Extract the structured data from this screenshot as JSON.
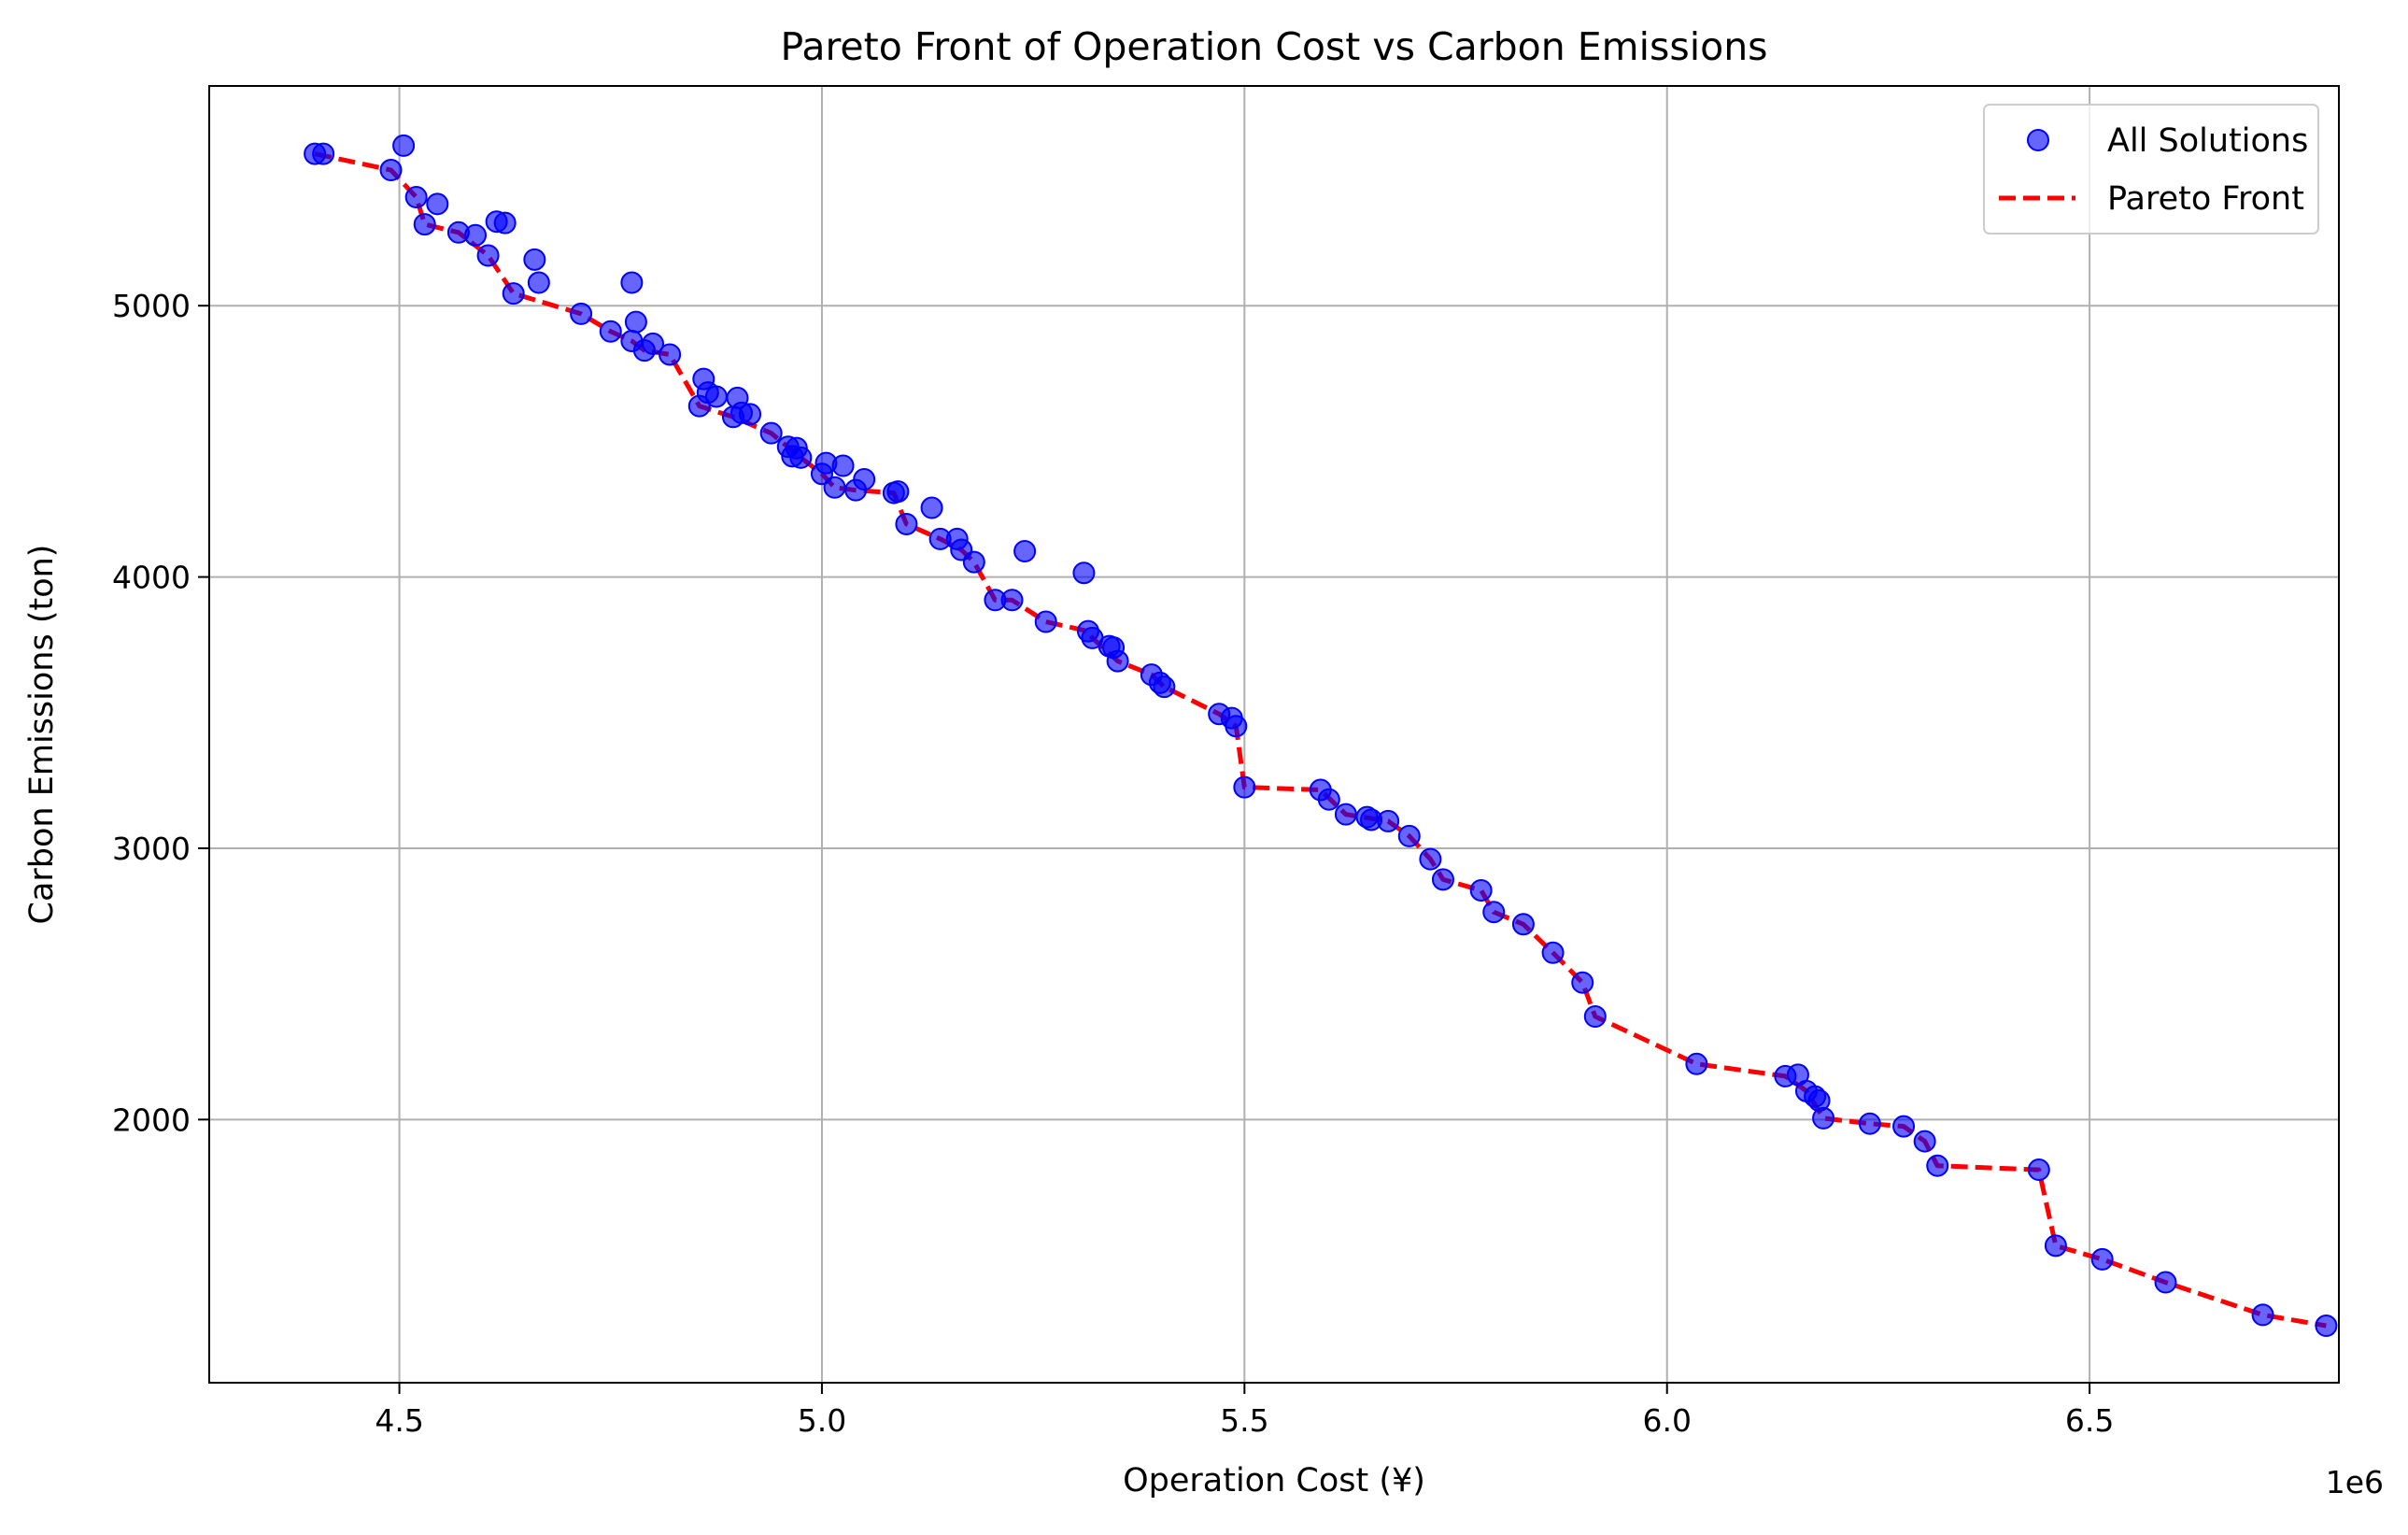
{
  "chart_data": {
    "type": "scatter",
    "title": "Pareto Front of Operation Cost vs Carbon Emissions",
    "xlabel": "Operation Cost (¥)",
    "ylabel": "Carbon Emissions (ton)",
    "x_offset_text": "1e6",
    "xlim": [
      4275000,
      6795000
    ],
    "ylim": [
      1030,
      5810
    ],
    "x_ticks": [
      {
        "value": 4500000,
        "label": "4.5"
      },
      {
        "value": 5000000,
        "label": "5.0"
      },
      {
        "value": 5500000,
        "label": "5.5"
      },
      {
        "value": 6000000,
        "label": "6.0"
      },
      {
        "value": 6500000,
        "label": "6.5"
      }
    ],
    "y_ticks": [
      {
        "value": 2000,
        "label": "2000"
      },
      {
        "value": 3000,
        "label": "3000"
      },
      {
        "value": 4000,
        "label": "4000"
      },
      {
        "value": 5000,
        "label": "5000"
      }
    ],
    "grid": true,
    "legend_position": "top-right",
    "colors": {
      "scatter": "#0000ff",
      "front": "#ff0000"
    },
    "series": [
      {
        "name": "All Solutions",
        "type": "scatter",
        "points": [
          [
            4400000,
            5560
          ],
          [
            4410000,
            5560
          ],
          [
            4490000,
            5500
          ],
          [
            4505000,
            5590
          ],
          [
            4520000,
            5400
          ],
          [
            4530000,
            5300
          ],
          [
            4545000,
            5375
          ],
          [
            4570000,
            5270
          ],
          [
            4590000,
            5260
          ],
          [
            4605000,
            5185
          ],
          [
            4615000,
            5310
          ],
          [
            4625000,
            5305
          ],
          [
            4635000,
            5045
          ],
          [
            4660000,
            5170
          ],
          [
            4665000,
            5085
          ],
          [
            4715000,
            4970
          ],
          [
            4750000,
            4905
          ],
          [
            4775000,
            5085
          ],
          [
            4775000,
            4870
          ],
          [
            4780000,
            4940
          ],
          [
            4790000,
            4835
          ],
          [
            4800000,
            4860
          ],
          [
            4820000,
            4820
          ],
          [
            4855000,
            4630
          ],
          [
            4860000,
            4730
          ],
          [
            4865000,
            4680
          ],
          [
            4875000,
            4665
          ],
          [
            4895000,
            4590
          ],
          [
            4900000,
            4660
          ],
          [
            4905000,
            4605
          ],
          [
            4915000,
            4600
          ],
          [
            4940000,
            4530
          ],
          [
            4960000,
            4480
          ],
          [
            4965000,
            4445
          ],
          [
            4970000,
            4475
          ],
          [
            4975000,
            4440
          ],
          [
            5000000,
            4380
          ],
          [
            5005000,
            4420
          ],
          [
            5015000,
            4330
          ],
          [
            5025000,
            4410
          ],
          [
            5040000,
            4320
          ],
          [
            5050000,
            4360
          ],
          [
            5085000,
            4310
          ],
          [
            5090000,
            4315
          ],
          [
            5100000,
            4195
          ],
          [
            5130000,
            4255
          ],
          [
            5140000,
            4140
          ],
          [
            5160000,
            4140
          ],
          [
            5165000,
            4100
          ],
          [
            5180000,
            4055
          ],
          [
            5205000,
            3915
          ],
          [
            5225000,
            3915
          ],
          [
            5240000,
            4095
          ],
          [
            5265000,
            3835
          ],
          [
            5310000,
            4015
          ],
          [
            5315000,
            3800
          ],
          [
            5320000,
            3775
          ],
          [
            5340000,
            3745
          ],
          [
            5345000,
            3740
          ],
          [
            5350000,
            3690
          ],
          [
            5390000,
            3640
          ],
          [
            5400000,
            3610
          ],
          [
            5405000,
            3595
          ],
          [
            5470000,
            3495
          ],
          [
            5485000,
            3480
          ],
          [
            5490000,
            3450
          ],
          [
            5500000,
            3225
          ],
          [
            5590000,
            3215
          ],
          [
            5600000,
            3180
          ],
          [
            5620000,
            3125
          ],
          [
            5645000,
            3115
          ],
          [
            5650000,
            3105
          ],
          [
            5670000,
            3100
          ],
          [
            5695000,
            3045
          ],
          [
            5720000,
            2960
          ],
          [
            5735000,
            2885
          ],
          [
            5780000,
            2845
          ],
          [
            5795000,
            2765
          ],
          [
            5830000,
            2720
          ],
          [
            5865000,
            2615
          ],
          [
            5900000,
            2505
          ],
          [
            5915000,
            2380
          ],
          [
            6035000,
            2205
          ],
          [
            6140000,
            2160
          ],
          [
            6155000,
            2165
          ],
          [
            6165000,
            2105
          ],
          [
            6175000,
            2085
          ],
          [
            6180000,
            2070
          ],
          [
            6185000,
            2005
          ],
          [
            6240000,
            1985
          ],
          [
            6280000,
            1975
          ],
          [
            6305000,
            1920
          ],
          [
            6320000,
            1830
          ],
          [
            6440000,
            1815
          ],
          [
            6460000,
            1535
          ],
          [
            6515000,
            1485
          ],
          [
            6590000,
            1400
          ],
          [
            6705000,
            1280
          ],
          [
            6780000,
            1240
          ]
        ]
      },
      {
        "name": "Pareto Front",
        "type": "line",
        "style": "dashed",
        "points": [
          [
            4400000,
            5560
          ],
          [
            4490000,
            5500
          ],
          [
            4520000,
            5400
          ],
          [
            4530000,
            5300
          ],
          [
            4570000,
            5270
          ],
          [
            4605000,
            5185
          ],
          [
            4635000,
            5045
          ],
          [
            4715000,
            4970
          ],
          [
            4750000,
            4905
          ],
          [
            4775000,
            4870
          ],
          [
            4790000,
            4835
          ],
          [
            4820000,
            4820
          ],
          [
            4855000,
            4630
          ],
          [
            4895000,
            4590
          ],
          [
            4940000,
            4530
          ],
          [
            4975000,
            4440
          ],
          [
            5000000,
            4380
          ],
          [
            5015000,
            4330
          ],
          [
            5040000,
            4320
          ],
          [
            5085000,
            4310
          ],
          [
            5100000,
            4195
          ],
          [
            5140000,
            4140
          ],
          [
            5165000,
            4100
          ],
          [
            5180000,
            4055
          ],
          [
            5205000,
            3915
          ],
          [
            5225000,
            3915
          ],
          [
            5265000,
            3835
          ],
          [
            5315000,
            3800
          ],
          [
            5320000,
            3775
          ],
          [
            5350000,
            3690
          ],
          [
            5390000,
            3640
          ],
          [
            5405000,
            3595
          ],
          [
            5470000,
            3495
          ],
          [
            5490000,
            3450
          ],
          [
            5500000,
            3225
          ],
          [
            5590000,
            3215
          ],
          [
            5620000,
            3125
          ],
          [
            5670000,
            3100
          ],
          [
            5695000,
            3045
          ],
          [
            5720000,
            2960
          ],
          [
            5735000,
            2885
          ],
          [
            5780000,
            2845
          ],
          [
            5795000,
            2765
          ],
          [
            5830000,
            2720
          ],
          [
            5865000,
            2615
          ],
          [
            5900000,
            2505
          ],
          [
            5915000,
            2380
          ],
          [
            6035000,
            2205
          ],
          [
            6140000,
            2160
          ],
          [
            6165000,
            2105
          ],
          [
            6185000,
            2005
          ],
          [
            6240000,
            1985
          ],
          [
            6280000,
            1975
          ],
          [
            6305000,
            1920
          ],
          [
            6320000,
            1830
          ],
          [
            6440000,
            1815
          ],
          [
            6460000,
            1535
          ],
          [
            6515000,
            1485
          ],
          [
            6590000,
            1400
          ],
          [
            6705000,
            1280
          ],
          [
            6780000,
            1240
          ]
        ]
      }
    ]
  }
}
